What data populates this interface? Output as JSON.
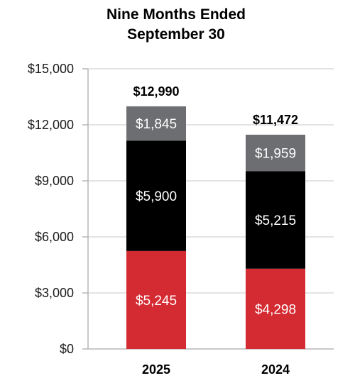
{
  "title": [
    "Nine Months Ended",
    "September 30"
  ],
  "chart_data": {
    "type": "bar",
    "stacked": true,
    "categories": [
      "2025",
      "2024"
    ],
    "series": [
      {
        "values": [
          5245,
          4298
        ],
        "labels": [
          "$5,245",
          "$4,298"
        ],
        "color": "#d42a32"
      },
      {
        "values": [
          5900,
          5215
        ],
        "labels": [
          "$5,900",
          "$5,215"
        ],
        "color": "#000000"
      },
      {
        "values": [
          1845,
          1959
        ],
        "labels": [
          "$1,845",
          "$1,959"
        ],
        "color": "#6d6e71"
      }
    ],
    "totals": [
      12990,
      11472
    ],
    "total_labels": [
      "$12,990",
      "$11,472"
    ],
    "yticks": [
      0,
      3000,
      6000,
      9000,
      12000,
      15000
    ],
    "ytick_labels": [
      "$0",
      "$3,000",
      "$6,000",
      "$9,000",
      "$12,000",
      "$15,000"
    ],
    "ylim": [
      0,
      15000
    ],
    "grid": true,
    "legend": "none"
  },
  "colors": {
    "gridline": "#dcdcdc",
    "axis": "#b5b5b5"
  }
}
